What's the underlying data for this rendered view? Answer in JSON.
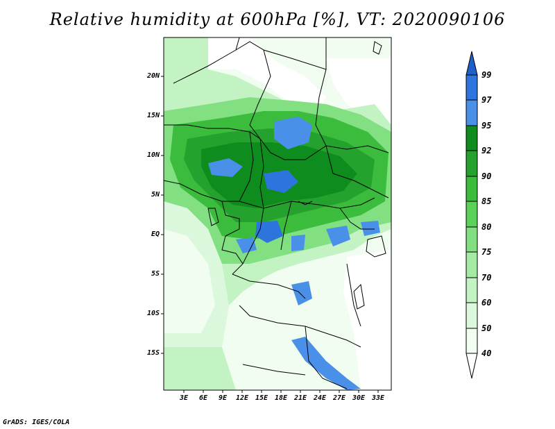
{
  "title": "Relative humidity at 600hPa [%], VT: 2020090106",
  "credit": "GrADS: IGES/COLA",
  "map": {
    "lat_labels": [
      "20N",
      "15N",
      "10N",
      "5N",
      "EQ",
      "5S",
      "10S",
      "15S"
    ],
    "lon_labels": [
      "3E",
      "6E",
      "9E",
      "12E",
      "15E",
      "18E",
      "21E",
      "24E",
      "27E",
      "30E",
      "33E"
    ]
  },
  "colorbar": {
    "labels": [
      "99",
      "97",
      "95",
      "92",
      "90",
      "85",
      "80",
      "75",
      "70",
      "60",
      "50",
      "40"
    ],
    "colors": {
      "above_99": "#1e5fc8",
      "97_99": "#2d74dc",
      "95_97": "#4a90e8",
      "92_95": "#0f8c1e",
      "90_92": "#25a22d",
      "85_90": "#3cbc3c",
      "80_85": "#5ad25a",
      "75_80": "#82e082",
      "70_75": "#a5eba5",
      "60_70": "#c3f3c3",
      "50_60": "#dcf8dc",
      "40_50": "#f0fdf0",
      "below_40": "#ffffff"
    }
  }
}
